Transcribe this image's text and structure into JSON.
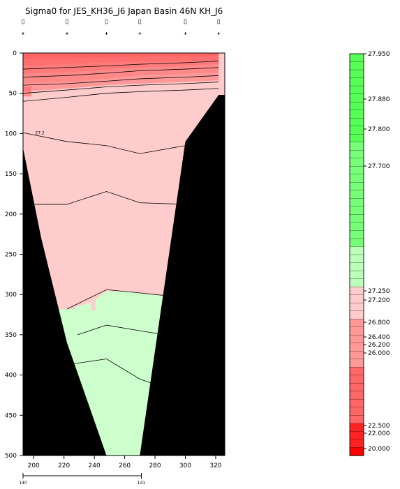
{
  "chart_data": {
    "type": "heatmap",
    "title": "Sigma0 for JES_KH36_J6 Japan Basin 46N KH_J6",
    "x_ticks": [
      200,
      220,
      240,
      260,
      280,
      300,
      320
    ],
    "y_ticks": [
      0,
      50,
      100,
      150,
      200,
      250,
      300,
      350,
      400,
      450,
      500
    ],
    "xlim": [
      193,
      326
    ],
    "ylim": [
      0,
      500
    ],
    "y_reversed": true,
    "station_x": [
      193,
      222,
      248,
      270,
      300,
      322
    ],
    "secondary_axis": {
      "ticks": [
        140,
        141
      ],
      "at_x": [
        193,
        271
      ]
    },
    "contour_label": "27.2",
    "colorbar": {
      "labels": [
        "27.950",
        "27.880",
        "27.800",
        "27.700",
        "27.250",
        "27.200",
        "26.800",
        "26.400",
        "26.200",
        "26.000",
        "22.500",
        "22.000",
        "20.000"
      ],
      "label_levels": [
        27.95,
        27.88,
        27.8,
        27.7,
        27.25,
        27.2,
        26.8,
        26.4,
        26.2,
        26.0,
        22.5,
        22.0,
        20.0
      ]
    },
    "colors": {
      "surface_red": "#ff6565",
      "upper_pink": "#ffcccc",
      "deep_green": "#ccffcc",
      "bright_green": "#66ff66",
      "land": "#000000"
    },
    "contour_depths": [
      {
        "x": [
          193,
          222,
          248,
          270,
          300,
          322
        ],
        "y": [
          20,
          18,
          16,
          14,
          12,
          10
        ]
      },
      {
        "x": [
          193,
          222,
          248,
          270,
          300,
          322
        ],
        "y": [
          30,
          28,
          25,
          22,
          20,
          18
        ]
      },
      {
        "x": [
          193,
          222,
          248,
          270,
          300,
          322
        ],
        "y": [
          40,
          38,
          35,
          32,
          30,
          28
        ]
      },
      {
        "x": [
          193,
          222,
          248,
          270,
          300,
          322
        ],
        "y": [
          50,
          46,
          42,
          40,
          38,
          36
        ]
      },
      {
        "x": [
          193,
          222,
          248,
          270,
          300,
          322
        ],
        "y": [
          60,
          55,
          50,
          48,
          46,
          44
        ]
      },
      {
        "x": [
          193,
          222,
          248,
          270,
          300,
          322
        ],
        "y": [
          99,
          110,
          115,
          125,
          115,
          88
        ]
      },
      {
        "x": [
          193,
          222,
          248,
          270,
          300,
          322
        ],
        "y": [
          188,
          188,
          172,
          186,
          188,
          188
        ]
      },
      {
        "x": [
          222,
          248,
          270,
          300,
          322
        ],
        "y": [
          318,
          294,
          298,
          304,
          304
        ]
      },
      {
        "x": [
          229,
          248,
          270,
          300,
          322
        ],
        "y": [
          350,
          338,
          345,
          354,
          354
        ]
      },
      {
        "x": [
          205,
          248,
          270,
          300,
          322
        ],
        "y": [
          392,
          380,
          405,
          425,
          425
        ]
      }
    ]
  }
}
